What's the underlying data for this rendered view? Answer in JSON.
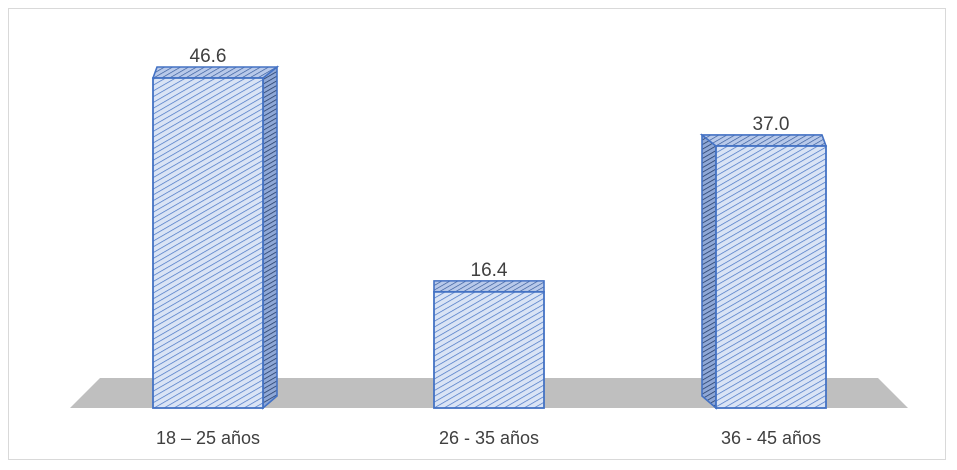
{
  "chart_data": {
    "type": "bar",
    "categories": [
      "18 – 25 años",
      "26 - 35 años",
      "36 - 45 años"
    ],
    "values": [
      46.6,
      16.4,
      37.0
    ],
    "value_labels": [
      "46.6",
      "16.4",
      "37.0"
    ],
    "title": "",
    "xlabel": "",
    "ylabel": "",
    "ylim": [
      0,
      50
    ],
    "grid": false,
    "legend": "none",
    "style": "3d-column-hatched"
  },
  "colors": {
    "bar_fill": "#dae4f5",
    "bar_hatch": "#4472c4",
    "bar_edge": "#4472c4",
    "floor": "#bfbfbf",
    "text": "#404040"
  }
}
